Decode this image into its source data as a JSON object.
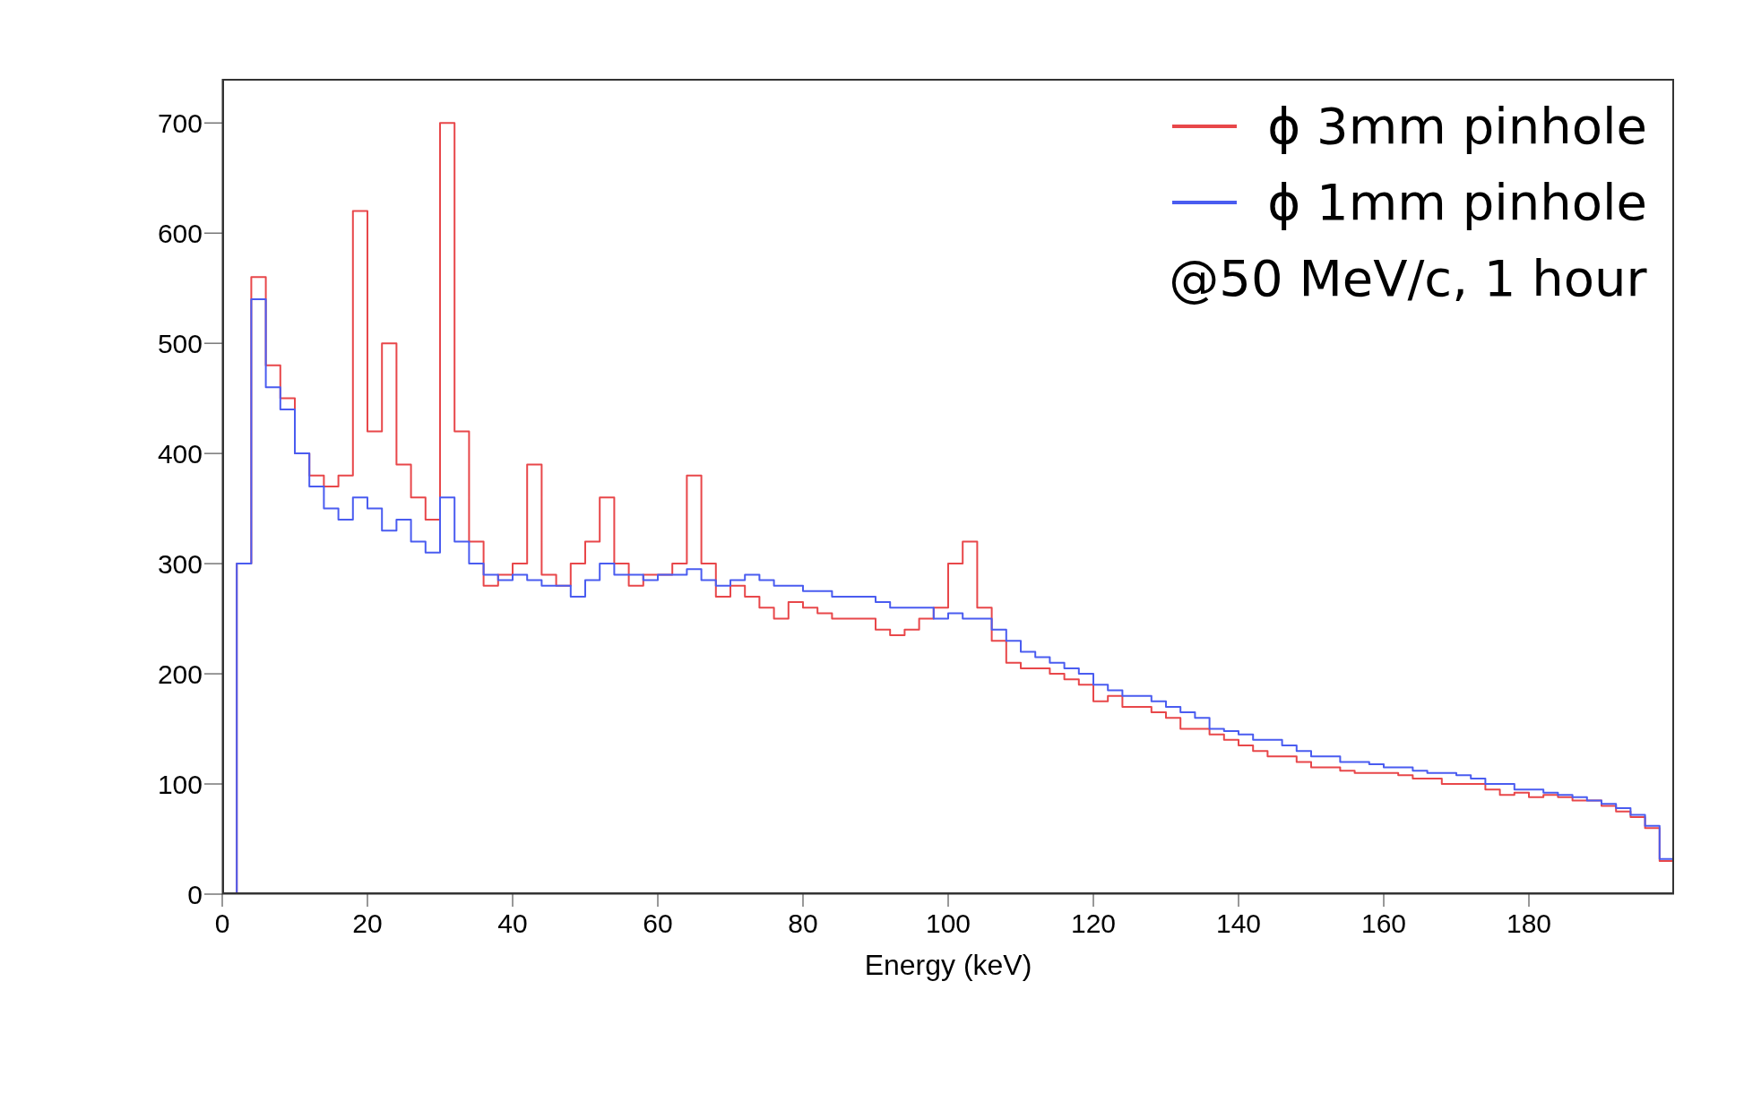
{
  "chart_data": {
    "type": "histogram",
    "xlabel": "Energy (keV)",
    "annotations": [
      "@50 MeV/c, 1 hour"
    ],
    "legend": "top right",
    "bins": [
      0,
      2,
      4,
      6,
      8,
      10,
      12,
      14,
      16,
      18,
      20,
      22,
      24,
      26,
      28,
      30,
      32,
      34,
      36,
      38,
      40,
      42,
      44,
      46,
      48,
      50,
      52,
      54,
      56,
      58,
      60,
      62,
      64,
      66,
      68,
      70,
      72,
      74,
      76,
      78,
      80,
      82,
      84,
      86,
      88,
      90,
      92,
      94,
      96,
      98,
      100,
      102,
      104,
      106,
      108,
      110,
      112,
      114,
      116,
      118,
      120,
      122,
      124,
      126,
      128,
      130,
      132,
      134,
      136,
      138,
      140,
      142,
      144,
      146,
      148,
      150,
      152,
      154,
      156,
      158,
      160,
      162,
      164,
      166,
      168,
      170,
      172,
      174,
      176,
      178,
      180,
      182,
      184,
      186,
      188,
      190,
      192,
      194,
      196,
      198,
      200
    ],
    "xlim": [
      0,
      200
    ],
    "xticks": [
      0,
      20,
      40,
      60,
      80,
      100,
      120,
      140,
      160,
      180
    ],
    "ylim": [
      0,
      740
    ],
    "yticks": [
      0,
      100,
      200,
      300,
      400,
      500,
      600,
      700
    ],
    "series": [
      {
        "name": "ϕ 3mm pinhole",
        "color": "#e8474a",
        "values": [
          0,
          300,
          560,
          480,
          450,
          400,
          380,
          370,
          380,
          620,
          420,
          500,
          390,
          360,
          340,
          700,
          420,
          320,
          280,
          290,
          300,
          390,
          290,
          280,
          300,
          320,
          360,
          300,
          280,
          290,
          290,
          300,
          380,
          300,
          270,
          280,
          270,
          260,
          250,
          265,
          260,
          255,
          250,
          250,
          250,
          240,
          235,
          240,
          250,
          260,
          300,
          320,
          260,
          230,
          210,
          205,
          205,
          200,
          195,
          190,
          175,
          180,
          170,
          170,
          165,
          160,
          150,
          150,
          145,
          140,
          135,
          130,
          125,
          125,
          120,
          115,
          115,
          112,
          110,
          110,
          110,
          108,
          105,
          105,
          100,
          100,
          100,
          95,
          90,
          92,
          88,
          90,
          88,
          85,
          85,
          80,
          75,
          70,
          60,
          30
        ]
      },
      {
        "name": "ϕ 1mm pinhole",
        "color": "#4a5cf0",
        "values": [
          0,
          300,
          540,
          460,
          440,
          400,
          370,
          350,
          340,
          360,
          350,
          330,
          340,
          320,
          310,
          360,
          320,
          300,
          290,
          285,
          290,
          285,
          280,
          280,
          270,
          285,
          300,
          290,
          290,
          285,
          290,
          290,
          295,
          285,
          280,
          285,
          290,
          285,
          280,
          280,
          275,
          275,
          270,
          270,
          270,
          265,
          260,
          260,
          260,
          250,
          255,
          250,
          250,
          240,
          230,
          220,
          215,
          210,
          205,
          200,
          190,
          185,
          180,
          180,
          175,
          170,
          165,
          160,
          150,
          148,
          145,
          140,
          140,
          135,
          130,
          125,
          125,
          120,
          120,
          118,
          115,
          115,
          112,
          110,
          110,
          108,
          105,
          100,
          100,
          95,
          95,
          92,
          90,
          88,
          85,
          82,
          78,
          72,
          62,
          32
        ]
      }
    ]
  }
}
